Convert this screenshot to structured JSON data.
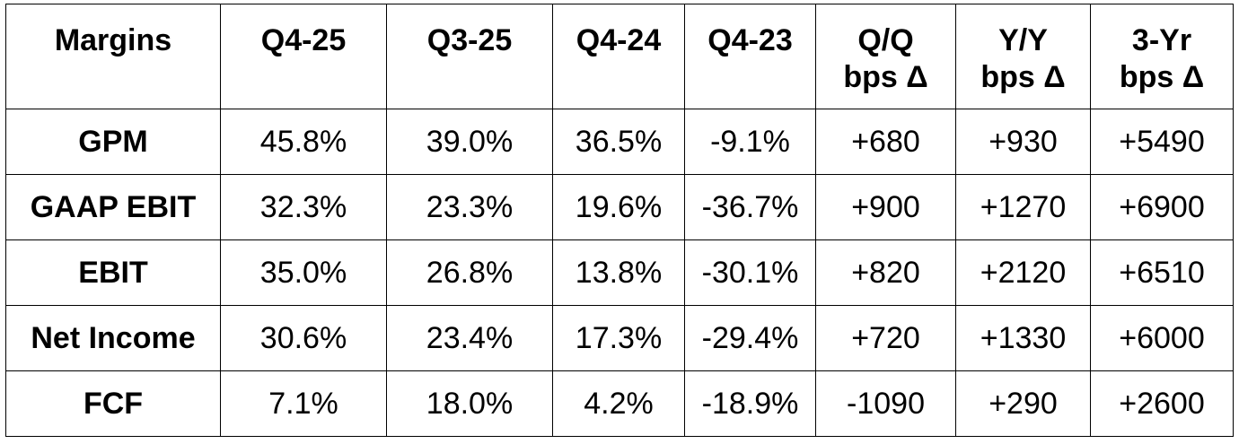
{
  "table": {
    "headers": {
      "metric": "Margins",
      "q4_25": "Q4-25",
      "q3_25": "Q3-25",
      "q4_24": "Q4-24",
      "q4_23": "Q4-23",
      "qq": [
        "Q/Q",
        "bps Δ"
      ],
      "yy": [
        "Y/Y",
        "bps Δ"
      ],
      "yr3": [
        "3-Yr",
        "bps Δ"
      ]
    },
    "rows": [
      [
        "GPM",
        "45.8%",
        "39.0%",
        "36.5%",
        "-9.1%",
        "+680",
        "+930",
        "+5490"
      ],
      [
        "GAAP EBIT",
        "32.3%",
        "23.3%",
        "19.6%",
        "-36.7%",
        "+900",
        "+1270",
        "+6900"
      ],
      [
        "EBIT",
        "35.0%",
        "26.8%",
        "13.8%",
        "-30.1%",
        "+820",
        "+2120",
        "+6510"
      ],
      [
        "Net Income",
        "30.6%",
        "23.4%",
        "17.3%",
        "-29.4%",
        "+720",
        "+1330",
        "+6000"
      ],
      [
        "FCF",
        "7.1%",
        "18.0%",
        "4.2%",
        "-18.9%",
        "-1090",
        "+290",
        "+2600"
      ]
    ]
  }
}
